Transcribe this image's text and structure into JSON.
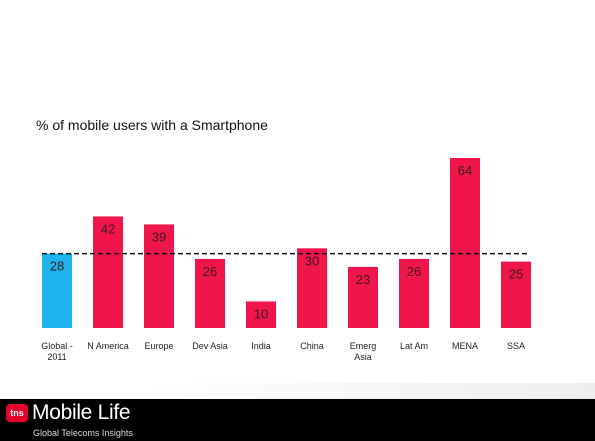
{
  "chart_data": {
    "type": "bar",
    "title": "% of mobile users with a Smartphone",
    "categories": [
      [
        "Global -",
        "2011"
      ],
      [
        "N America"
      ],
      [
        "Europe"
      ],
      [
        "Dev Asia"
      ],
      [
        "India"
      ],
      [
        "China"
      ],
      [
        "Emerg",
        "Asia"
      ],
      [
        "Lat Am"
      ],
      [
        "MENA"
      ],
      [
        "SSA"
      ]
    ],
    "values": [
      28,
      42,
      39,
      26,
      10,
      30,
      23,
      26,
      64,
      25
    ],
    "reference_line": 28,
    "reference_line_style": "dashed",
    "colors": [
      "#1eb4ee",
      "#f0164b",
      "#f0164b",
      "#f0164b",
      "#f0164b",
      "#f0164b",
      "#f0164b",
      "#f0164b",
      "#f0164b",
      "#f0164b"
    ],
    "xlabel": "",
    "ylabel": "",
    "ylim": [
      0,
      64
    ],
    "grid": false
  },
  "footer": {
    "badge": "tns",
    "brand": "Mobile Life",
    "tagline": "Global Telecoms Insights"
  }
}
